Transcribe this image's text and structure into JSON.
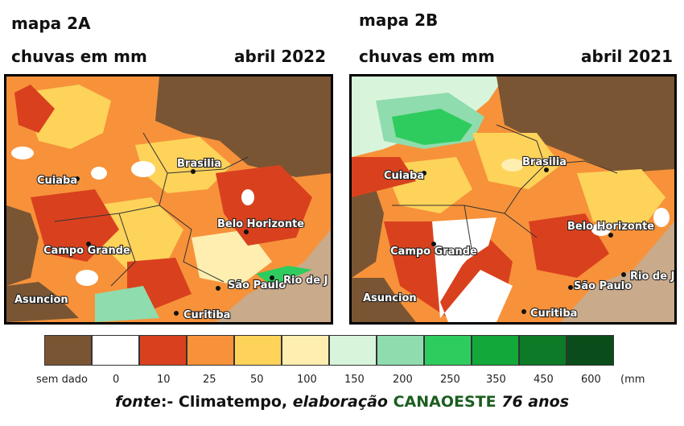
{
  "map_a": {
    "title": "mapa 2A",
    "subtitle": "chuvas em mm",
    "date": "abril 2022",
    "cities": [
      "Cuiaba",
      "Brasilia",
      "Belo Horizonte",
      "Campo Grande",
      "Asuncion",
      "São Paulo",
      "Rio de J",
      "Curitiba"
    ]
  },
  "map_b": {
    "title": "mapa 2B",
    "subtitle": "chuvas em mm",
    "date": "abril 2021",
    "cities": [
      "Cuiaba",
      "Brasilia",
      "Belo Horizonte",
      "Campo Grande",
      "Asuncion",
      "São Paulo",
      "Rio de J",
      "Curitiba"
    ]
  },
  "legend": {
    "labels": [
      "sem dado",
      "0",
      "10",
      "25",
      "50",
      "100",
      "150",
      "200",
      "250",
      "350",
      "450",
      "600",
      "(mm"
    ],
    "colors": [
      "#7a5533",
      "#ffffff",
      "#d9411e",
      "#f7923a",
      "#fdd35a",
      "#feeeb0",
      "#d8f5dc",
      "#8fdcae",
      "#2ecc5e",
      "#13a83a",
      "#0c7a26",
      "#0b4d1a"
    ]
  },
  "source": {
    "prefix": "fonte",
    "middle": ":- Climatempo, ",
    "elab": "elaboração",
    "brand": "CANAOESTE",
    "suffix": "76 anos"
  }
}
